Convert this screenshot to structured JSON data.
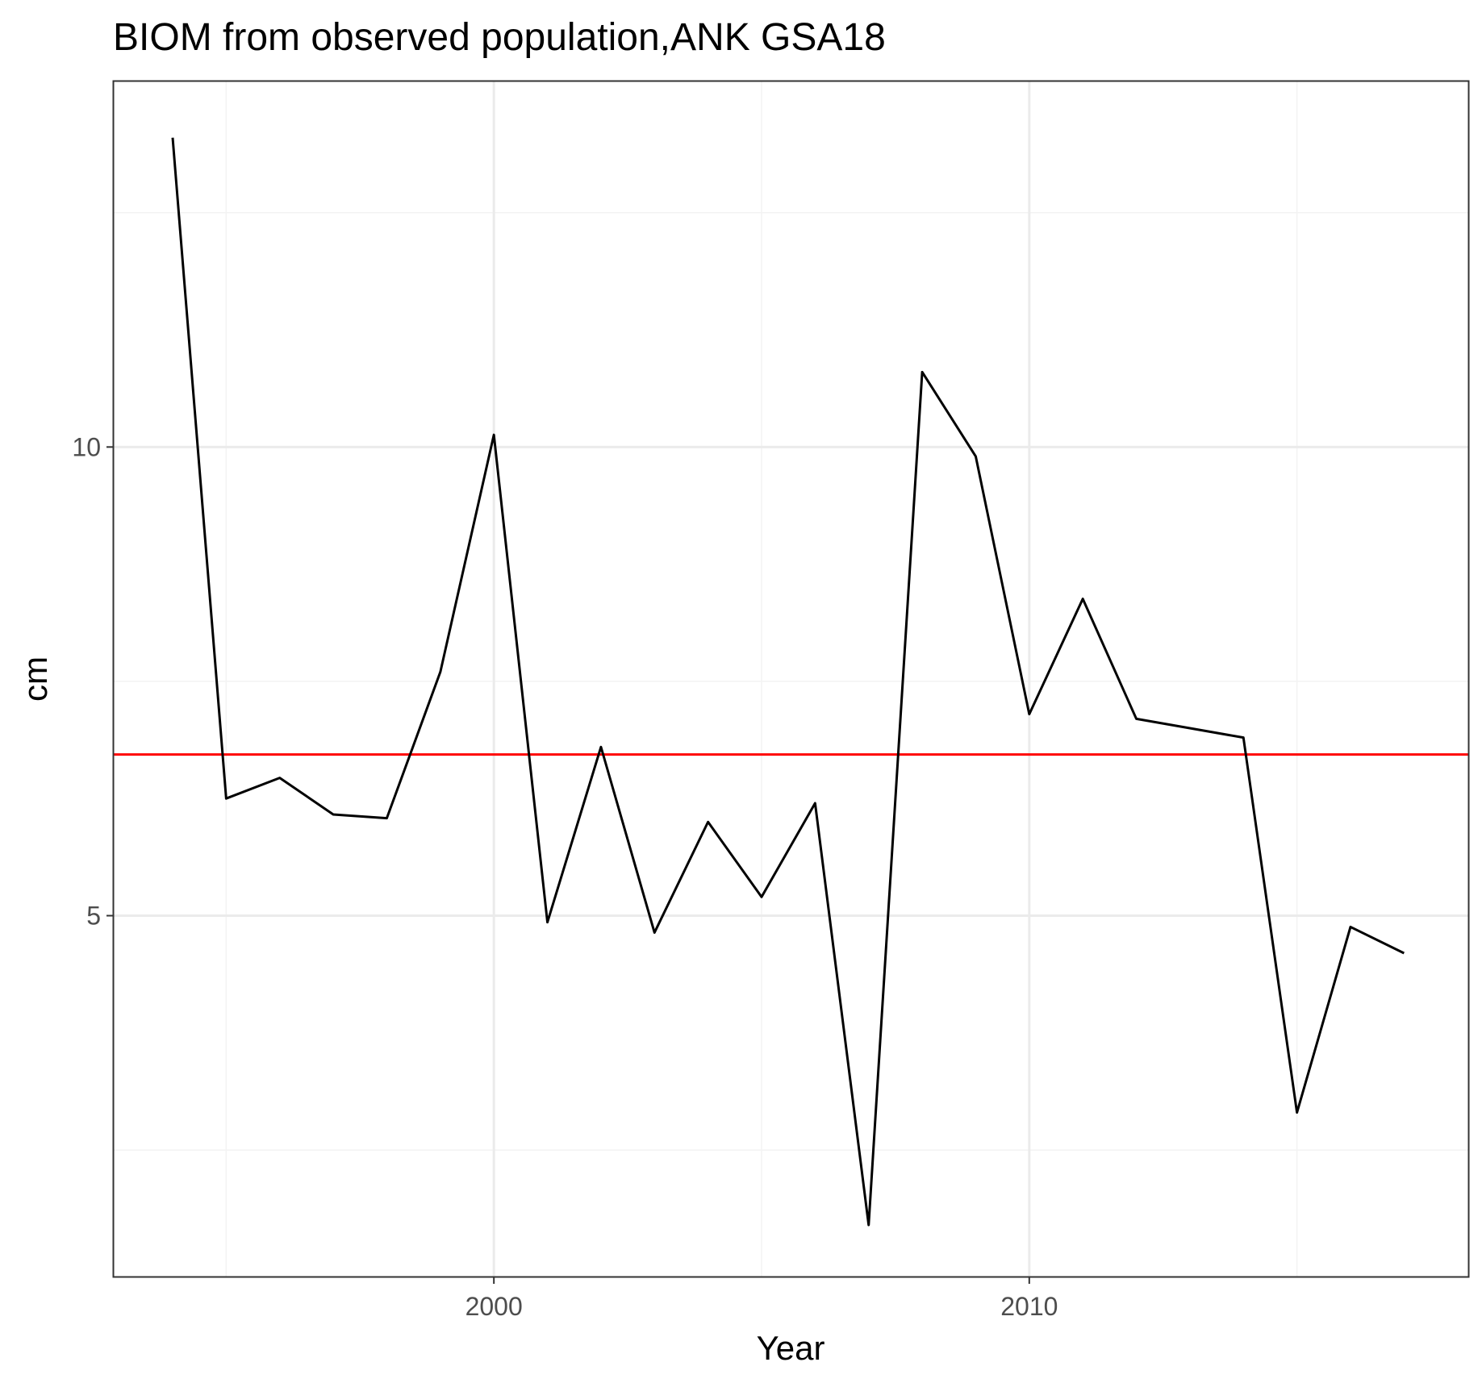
{
  "chart_data": {
    "type": "line",
    "title": "BIOM from observed population,ANK GSA18",
    "xlabel": "Year",
    "ylabel": "cm",
    "xlim": [
      1992.9,
      2018.2
    ],
    "ylim": [
      1.15,
      13.9
    ],
    "x_ticks": [
      2000,
      2010
    ],
    "x_tick_labels": [
      "2000",
      "2010"
    ],
    "x_minor_ticks": [
      1995,
      2005,
      2015
    ],
    "y_ticks": [
      5,
      10
    ],
    "y_tick_labels": [
      "5",
      "10"
    ],
    "y_minor_ticks": [
      2.5,
      7.5,
      12.5
    ],
    "grid": true,
    "series": [
      {
        "x": [
          1994,
          1995,
          1996,
          1997,
          1998,
          1999,
          2000,
          2001,
          2002,
          2003,
          2004,
          2005,
          2006,
          2007,
          2008,
          2009,
          2010,
          2011,
          2012,
          2013,
          2014,
          2015,
          2016,
          2017
        ],
        "values": [
          13.3,
          6.25,
          6.47,
          6.08,
          6.04,
          7.6,
          10.13,
          4.93,
          6.8,
          4.82,
          6.0,
          5.2,
          6.2,
          1.7,
          10.8,
          9.9,
          7.15,
          8.38,
          7.1,
          7.0,
          6.9,
          2.9,
          4.88,
          4.6
        ],
        "color": "#000000"
      }
    ],
    "reference_line": {
      "value": 6.72,
      "color": "#ff0000"
    },
    "colors": {
      "panel_border": "#333333",
      "major_grid": "#ebebeb",
      "minor_grid": "#f3f3f3",
      "tick_label": "#4d4d4d"
    }
  }
}
